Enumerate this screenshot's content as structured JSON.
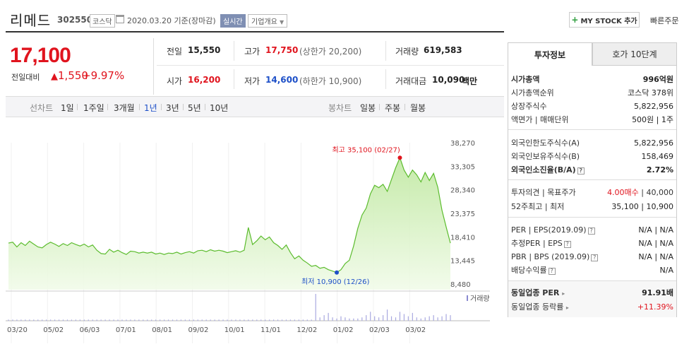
{
  "header": {
    "name": "리메드",
    "code": "302550",
    "market": "코스닥",
    "date": "2020.03.20  기준(장마감)",
    "realtime": "실시간",
    "company_info": "기업개요",
    "mystock": "MY STOCK 추가",
    "quick_order": "빠른주문"
  },
  "price": {
    "current": "17,100",
    "change_label": "전일대비",
    "change": "1,550",
    "change_pct": "+9.97%"
  },
  "stats": {
    "prev_label": "전일",
    "prev": "15,550",
    "high_label": "고가",
    "high": "17,750",
    "upper": "(상한가 20,200)",
    "volume_label": "거래량",
    "volume": "619,583",
    "open_label": "시가",
    "open": "16,200",
    "low_label": "저가",
    "low": "14,600",
    "lower": "(하한가 10,900)",
    "amount_label": "거래대금",
    "amount": "10,090",
    "amount_unit": "백만"
  },
  "periods": {
    "line_label": "선차트",
    "items": [
      "1일",
      "1주일",
      "3개월",
      "1년",
      "3년",
      "5년",
      "10년"
    ],
    "active": "1년",
    "candle_label": "봉차트",
    "candle_items": [
      "일봉",
      "주봉",
      "월봉"
    ]
  },
  "chart_data": {
    "type": "area",
    "x_ticks": [
      "03/20",
      "05/02",
      "06/03",
      "07/01",
      "08/01",
      "09/02",
      "10/01",
      "11/01",
      "12/02",
      "01/02",
      "02/03",
      "03/02"
    ],
    "y_ticks": [
      "38,270",
      "33,305",
      "28,340",
      "23,375",
      "18,410",
      "13,445",
      "8,480"
    ],
    "ylim": [
      8480,
      38270
    ],
    "series": [
      {
        "values": [
          17100,
          17300,
          16300,
          17200,
          16600,
          17500,
          16900,
          16300,
          16100,
          16800,
          17300,
          16900,
          16400,
          17000,
          16600,
          17200,
          16800,
          16500,
          16900,
          16300,
          16700,
          15600,
          14900,
          14800,
          15800,
          15200,
          15600,
          15100,
          14700,
          15400,
          15300,
          15000,
          15200,
          15000,
          15200,
          14800,
          15000,
          14700,
          15000,
          14900,
          15200,
          14800,
          15100,
          15300,
          15000,
          15500,
          15600,
          15300,
          15700,
          15400,
          15600,
          15400,
          15100,
          15300,
          15500,
          15200,
          15600,
          20400,
          16800,
          17600,
          18600,
          17800,
          18400,
          17200,
          16600,
          15800,
          16700,
          15100,
          13800,
          14400,
          13500,
          12900,
          12200,
          12400,
          11800,
          12000,
          11500,
          11200,
          10900,
          11500,
          12800,
          13500,
          16500,
          20200,
          23000,
          24500,
          27500,
          29300,
          28800,
          29500,
          28000,
          30500,
          33000,
          35100,
          32500,
          31000,
          32500,
          31500,
          30000,
          32000,
          30300,
          31800,
          28900,
          24000,
          20500,
          17100
        ],
        "line_color": "#5cbc2e"
      }
    ],
    "annotations": {
      "high": "최고 35,100 (02/27)",
      "low": "최저 10,900 (12/26)"
    },
    "volume_label": "거래량",
    "volume": [
      1,
      1,
      1,
      1,
      1,
      1,
      1,
      1,
      1,
      1,
      1,
      1,
      1,
      1,
      1,
      1,
      1,
      1,
      1,
      1,
      1,
      1,
      1,
      1,
      1,
      1,
      1,
      1,
      1,
      1,
      1,
      1,
      1,
      1,
      1,
      1,
      1,
      1,
      1,
      1,
      1,
      1,
      1,
      1,
      1,
      1,
      1,
      1,
      1,
      1,
      1,
      1,
      1,
      1,
      1,
      1,
      1,
      1,
      1,
      1,
      1,
      1,
      1,
      1,
      1,
      1,
      1,
      1,
      1,
      1,
      1,
      1,
      1,
      24,
      3,
      5,
      7,
      3,
      2,
      4,
      3,
      2,
      2,
      2,
      3,
      5,
      8,
      4,
      3,
      5,
      10,
      4,
      3,
      8,
      6,
      4,
      7,
      3,
      2,
      3,
      4,
      5,
      3,
      4,
      6,
      5
    ]
  },
  "right": {
    "tab_invest": "투자정보",
    "tab_hoga": "호가 10단계",
    "market_cap_label": "시가총액",
    "market_cap": "996억원",
    "rank_label": "시가총액순위",
    "rank": "코스닥 378위",
    "shares_label": "상장주식수",
    "shares": "5,822,956",
    "face_label": "액면가 | 매매단위",
    "face": "500원 | 1주",
    "foreign_limit_label": "외국인한도주식수(A)",
    "foreign_limit": "5,822,956",
    "foreign_hold_label": "외국인보유주식수(B)",
    "foreign_hold": "158,469",
    "foreign_ratio_label": "외국인소진율(B/A)",
    "foreign_ratio": "2.72%",
    "opinion_label": "투자의견 | 목표주가",
    "opinion": "4.00매수",
    "target": "| 40,000",
    "w52_label": "52주최고 | 최저",
    "w52": "35,100 | 10,900",
    "per_label": "PER | EPS(2019.09)",
    "per": "N/A | N/A",
    "eper_label": "추정PER | EPS",
    "eper": "N/A | N/A",
    "pbr_label": "PBR | BPS (2019.09)",
    "pbr": "N/A | N/A",
    "div_label": "배당수익률",
    "div": "N/A",
    "ind_per_label": "동일업종 PER",
    "ind_per": "91.91배",
    "ind_rate_label": "동일업종 등락률",
    "ind_rate": "+11.39%"
  }
}
